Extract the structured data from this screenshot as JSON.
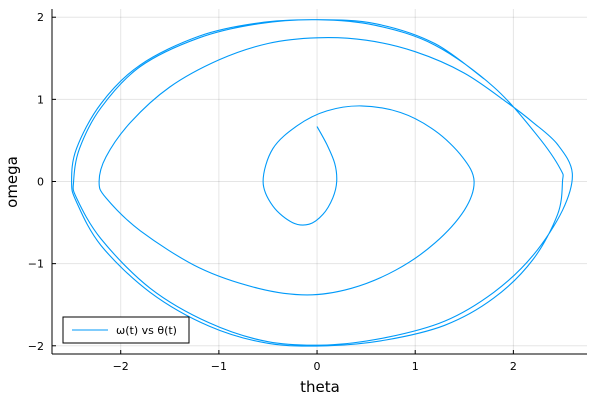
{
  "chart_data": {
    "type": "line",
    "xlabel": "theta",
    "ylabel": "omega",
    "xlim": [
      -2.7,
      2.75
    ],
    "ylim": [
      -2.1,
      2.1
    ],
    "xticks": [
      -2,
      -1,
      0,
      1,
      2
    ],
    "yticks": [
      -2,
      -1,
      0,
      1,
      2
    ],
    "xtick_labels": [
      "−2",
      "−1",
      "0",
      "1",
      "2"
    ],
    "ytick_labels": [
      "−2",
      "−1",
      "0",
      "1",
      "2"
    ],
    "grid": true,
    "legend_position": "bottom-left",
    "series": [
      {
        "name": "ω(t) vs θ(t)",
        "color": "#009af9",
        "points": [
          [
            0.0,
            0.67
          ],
          [
            0.1,
            0.45
          ],
          [
            0.18,
            0.22
          ],
          [
            0.2,
            0.0
          ],
          [
            0.16,
            -0.2
          ],
          [
            0.06,
            -0.4
          ],
          [
            -0.08,
            -0.52
          ],
          [
            -0.25,
            -0.5
          ],
          [
            -0.45,
            -0.3
          ],
          [
            -0.55,
            0.0
          ],
          [
            -0.45,
            0.4
          ],
          [
            -0.2,
            0.68
          ],
          [
            0.1,
            0.86
          ],
          [
            0.45,
            0.92
          ],
          [
            0.85,
            0.84
          ],
          [
            1.2,
            0.62
          ],
          [
            1.48,
            0.3
          ],
          [
            1.6,
            0.0
          ],
          [
            1.5,
            -0.35
          ],
          [
            1.2,
            -0.75
          ],
          [
            0.8,
            -1.08
          ],
          [
            0.35,
            -1.3
          ],
          [
            -0.1,
            -1.38
          ],
          [
            -0.6,
            -1.3
          ],
          [
            -1.2,
            -1.05
          ],
          [
            -1.8,
            -0.6
          ],
          [
            -2.15,
            -0.2
          ],
          [
            -2.22,
            0.0
          ],
          [
            -2.15,
            0.3
          ],
          [
            -1.9,
            0.72
          ],
          [
            -1.5,
            1.15
          ],
          [
            -1.0,
            1.48
          ],
          [
            -0.5,
            1.68
          ],
          [
            0.0,
            1.75
          ],
          [
            0.5,
            1.72
          ],
          [
            1.0,
            1.58
          ],
          [
            1.5,
            1.32
          ],
          [
            1.95,
            0.95
          ],
          [
            2.2,
            0.72
          ],
          [
            2.45,
            0.45
          ],
          [
            2.6,
            0.1
          ],
          [
            2.5,
            -0.35
          ],
          [
            2.2,
            -0.9
          ],
          [
            1.8,
            -1.35
          ],
          [
            1.3,
            -1.7
          ],
          [
            0.7,
            -1.9
          ],
          [
            0.1,
            -1.99
          ],
          [
            -0.5,
            -1.95
          ],
          [
            -1.1,
            -1.72
          ],
          [
            -1.7,
            -1.3
          ],
          [
            -2.2,
            -0.7
          ],
          [
            -2.45,
            -0.2
          ],
          [
            -2.48,
            0.0
          ],
          [
            -2.42,
            0.4
          ],
          [
            -2.2,
            0.9
          ],
          [
            -1.8,
            1.4
          ],
          [
            -1.2,
            1.75
          ],
          [
            -0.6,
            1.92
          ],
          [
            0.0,
            1.97
          ],
          [
            0.6,
            1.9
          ],
          [
            1.2,
            1.66
          ],
          [
            1.8,
            1.15
          ],
          [
            2.25,
            0.55
          ],
          [
            2.48,
            0.15
          ],
          [
            2.5,
            0.0
          ],
          [
            2.45,
            -0.4
          ],
          [
            2.2,
            -0.95
          ],
          [
            1.8,
            -1.42
          ],
          [
            1.3,
            -1.75
          ],
          [
            0.7,
            -1.93
          ],
          [
            0.1,
            -2.0
          ],
          [
            -0.5,
            -1.97
          ],
          [
            -1.1,
            -1.76
          ],
          [
            -1.7,
            -1.35
          ],
          [
            -2.2,
            -0.78
          ],
          [
            -2.45,
            -0.25
          ],
          [
            -2.5,
            0.0
          ],
          [
            -2.45,
            0.4
          ],
          [
            -2.2,
            0.95
          ],
          [
            -1.8,
            1.42
          ],
          [
            -1.2,
            1.77
          ],
          [
            -0.6,
            1.93
          ],
          [
            0.0,
            1.97
          ],
          [
            0.6,
            1.92
          ],
          [
            1.2,
            1.68
          ],
          [
            1.7,
            1.25
          ]
        ]
      }
    ]
  }
}
